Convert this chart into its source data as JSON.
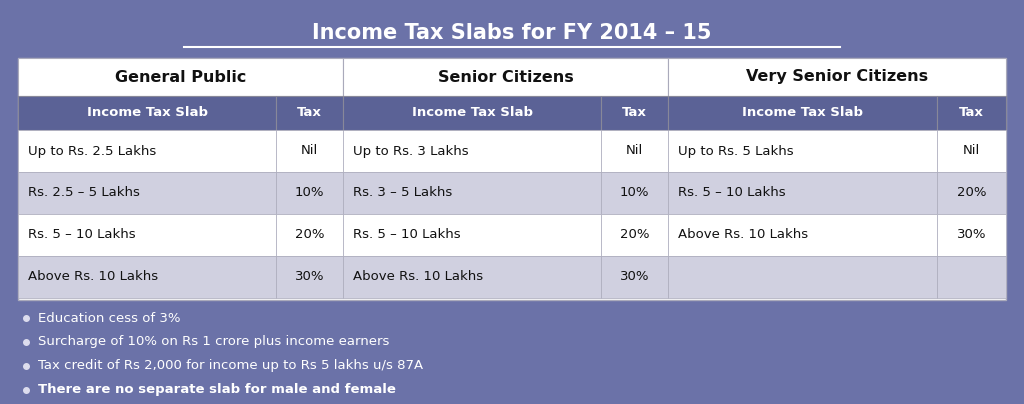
{
  "title": "Income Tax Slabs for FY 2014 – 15",
  "bg_color": "#6B72A8",
  "col_header_bg": "#5B6296",
  "row_alt1": "#FFFFFF",
  "row_alt2": "#D0D0E0",
  "sections": [
    {
      "title": "General Public",
      "rows": [
        [
          "Up to Rs. 2.5 Lakhs",
          "Nil"
        ],
        [
          "Rs. 2.5 – 5 Lakhs",
          "10%"
        ],
        [
          "Rs. 5 – 10 Lakhs",
          "20%"
        ],
        [
          "Above Rs. 10 Lakhs",
          "30%"
        ]
      ]
    },
    {
      "title": "Senior Citizens",
      "rows": [
        [
          "Up to Rs. 3 Lakhs",
          "Nil"
        ],
        [
          "Rs. 3 – 5 Lakhs",
          "10%"
        ],
        [
          "Rs. 5 – 10 Lakhs",
          "20%"
        ],
        [
          "Above Rs. 10 Lakhs",
          "30%"
        ]
      ]
    },
    {
      "title": "Very Senior Citizens",
      "rows": [
        [
          "Up to Rs. 5 Lakhs",
          "Nil"
        ],
        [
          "Rs. 5 – 10 Lakhs",
          "20%"
        ],
        [
          "Above Rs. 10 Lakhs",
          "30%"
        ],
        [
          "",
          ""
        ]
      ]
    }
  ],
  "col_header": [
    "Income Tax Slab",
    "Tax"
  ],
  "bullets": [
    {
      "text": "Education cess of 3%",
      "bold": false
    },
    {
      "text": "Surcharge of 10% on Rs 1 crore plus income earners",
      "bold": false
    },
    {
      "text": "Tax credit of Rs 2,000 for income up to Rs 5 lakhs u/s 87A",
      "bold": false
    },
    {
      "text": "There are no separate slab for male and female",
      "bold": true
    }
  ],
  "fig_w": 10.24,
  "fig_h": 4.04,
  "dpi": 100
}
